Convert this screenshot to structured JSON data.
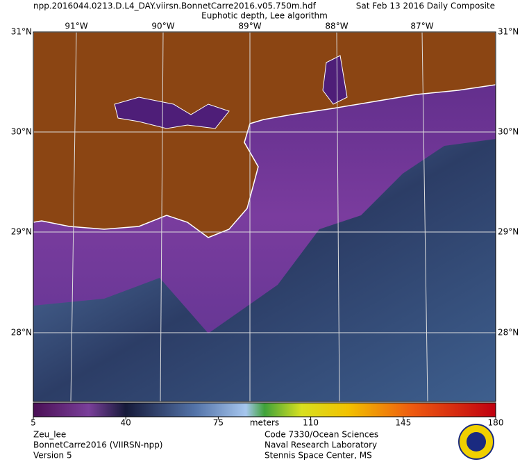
{
  "header": {
    "file": "npp.2016044.0213.D.L4_DAY.viirsn.BonnetCarre2016.v05.750m.hdf",
    "date": "Sat Feb 13 2016 Daily Composite",
    "product": "Euphotic depth, Lee algorithm"
  },
  "map": {
    "lat_labels": [
      "31°N",
      "30°N",
      "29°N",
      "28°N"
    ],
    "lon_labels": [
      "91°W",
      "90°W",
      "89°W",
      "88°W",
      "87°W"
    ]
  },
  "colorbar": {
    "label": "meters",
    "range": [
      5,
      180
    ],
    "ticks": [
      5,
      40,
      75,
      110,
      145,
      180
    ]
  },
  "footer": {
    "left": [
      "Zeu_lee",
      "BonnetCarre2016 (VIIRSN-npp)",
      "Version 5"
    ],
    "right": [
      "Code 7330/Ocean Sciences",
      "Naval Research Laboratory",
      "Stennis Space Center, MS"
    ]
  }
}
